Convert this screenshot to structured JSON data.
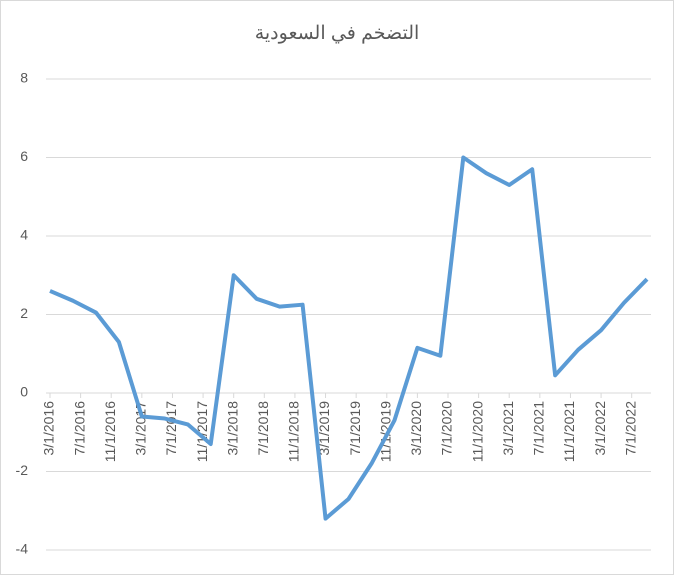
{
  "chart_data": {
    "type": "line",
    "title": "التضخم في السعودية",
    "x": [
      "3/1/2016",
      "6/1/2016",
      "9/1/2016",
      "12/1/2016",
      "3/1/2017",
      "6/1/2017",
      "9/1/2017",
      "12/1/2017",
      "3/1/2018",
      "6/1/2018",
      "9/1/2018",
      "12/1/2018",
      "3/1/2019",
      "6/1/2019",
      "9/1/2019",
      "12/1/2019",
      "3/1/2020",
      "6/1/2020",
      "9/1/2020",
      "12/1/2020",
      "3/1/2021",
      "6/1/2021",
      "9/1/2021",
      "12/1/2021",
      "3/1/2022",
      "6/1/2022",
      "9/1/2022"
    ],
    "series": [
      {
        "color": "#5b9bd5",
        "values": [
          2.6,
          2.35,
          2.05,
          1.3,
          -0.6,
          -0.65,
          -0.8,
          -1.3,
          3.0,
          2.4,
          2.2,
          2.25,
          -3.2,
          -2.7,
          -1.8,
          -0.7,
          1.15,
          0.95,
          6.0,
          5.6,
          5.3,
          5.7,
          0.45,
          1.1,
          1.6,
          2.3,
          2.9
        ]
      }
    ],
    "xlim": [
      "3/1/2016",
      "9/1/2022"
    ],
    "xticks": [
      "3/1/2016",
      "7/1/2016",
      "11/1/2016",
      "3/1/2017",
      "7/1/2017",
      "11/1/2017",
      "3/1/2018",
      "7/1/2018",
      "11/1/2018",
      "3/1/2019",
      "7/1/2019",
      "11/1/2019",
      "3/1/2020",
      "7/1/2020",
      "11/1/2020",
      "3/1/2021",
      "7/1/2021",
      "11/1/2021",
      "3/1/2022",
      "7/1/2022"
    ],
    "ylim": [
      -4,
      8
    ],
    "yticks": [
      -4,
      -2,
      0,
      2,
      4,
      6,
      8
    ],
    "grid": true
  }
}
